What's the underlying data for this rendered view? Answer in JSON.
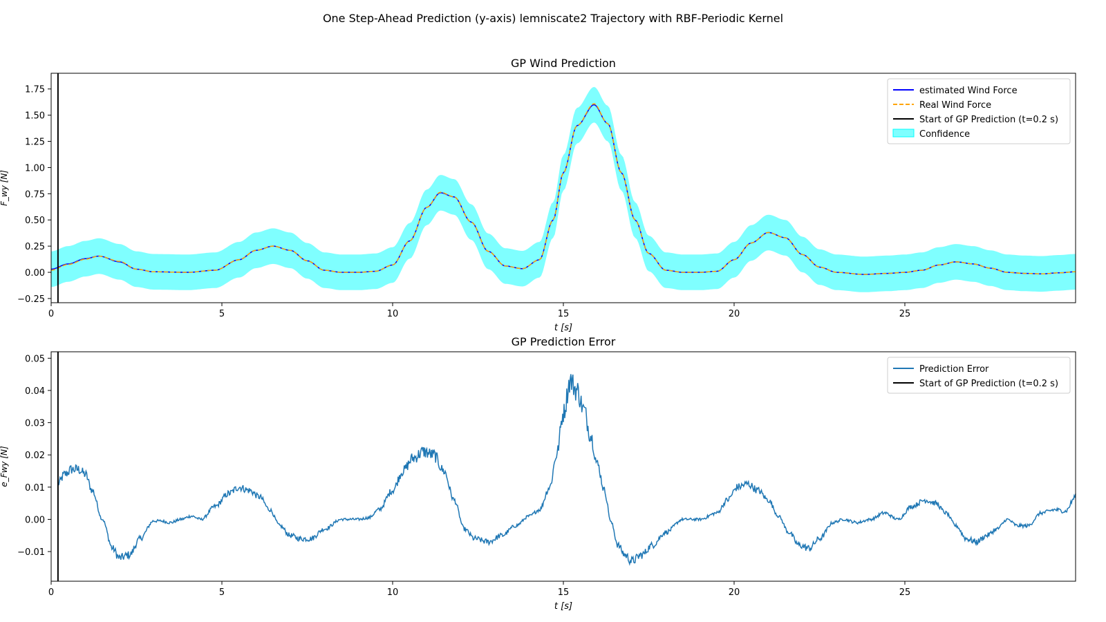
{
  "figure": {
    "suptitle": "One Step-Ahead Prediction (y-axis) lemniscate2 Trajectory with RBF-Periodic Kernel"
  },
  "chart_data": [
    {
      "type": "line",
      "title": "GP Wind Prediction",
      "xlabel": "t [s]",
      "ylabel": "F_wy [N]",
      "xlim": [
        0,
        30
      ],
      "ylim": [
        -0.29,
        1.9
      ],
      "xticks": [
        0,
        5,
        10,
        15,
        20,
        25
      ],
      "yticks": [
        -0.25,
        0.0,
        0.25,
        0.5,
        0.75,
        1.0,
        1.25,
        1.5,
        1.75
      ],
      "ytick_labels": [
        "−0.25",
        "0.00",
        "0.25",
        "0.50",
        "0.75",
        "1.00",
        "1.25",
        "1.50",
        "1.75"
      ],
      "grid": false,
      "legend_position": "top-right",
      "start_line_x": 0.2,
      "legend": [
        {
          "label": "estimated Wind Force",
          "color": "#0000ff",
          "style": "solid"
        },
        {
          "label": "Real Wind Force",
          "color": "#ffa500",
          "style": "dashed"
        },
        {
          "label": "Start of GP Prediction (t=0.2 s)",
          "color": "#000000",
          "style": "solid"
        },
        {
          "label": "Confidence",
          "color": "#00ffff",
          "style": "patch"
        }
      ],
      "confidence_halfwidth": 0.17,
      "series": [
        {
          "name": "estimated Wind Force",
          "color": "#0000ff",
          "x": [
            0,
            0.5,
            1.0,
            1.4,
            2.0,
            2.5,
            3.0,
            4.0,
            4.8,
            5.5,
            6.0,
            6.5,
            7.0,
            7.5,
            8.0,
            8.5,
            9.0,
            9.5,
            10.0,
            10.5,
            11.0,
            11.4,
            11.8,
            12.3,
            12.8,
            13.3,
            13.8,
            14.3,
            14.7,
            15.0,
            15.4,
            15.9,
            16.3,
            16.7,
            17.1,
            17.5,
            18.0,
            18.5,
            19.0,
            19.5,
            20.0,
            20.5,
            21.0,
            21.5,
            22.0,
            22.5,
            23.0,
            23.8,
            24.5,
            25.0,
            25.5,
            26.0,
            26.5,
            27.0,
            27.5,
            28.0,
            28.5,
            29.0,
            29.5,
            30.0
          ],
          "values": [
            0.03,
            0.08,
            0.13,
            0.155,
            0.1,
            0.03,
            0.005,
            0.0,
            0.02,
            0.12,
            0.21,
            0.25,
            0.21,
            0.11,
            0.02,
            0.0,
            0.0,
            0.01,
            0.07,
            0.3,
            0.62,
            0.76,
            0.72,
            0.48,
            0.2,
            0.06,
            0.035,
            0.12,
            0.5,
            0.95,
            1.4,
            1.6,
            1.42,
            0.95,
            0.5,
            0.18,
            0.02,
            0.0,
            0.0,
            0.01,
            0.12,
            0.28,
            0.38,
            0.33,
            0.17,
            0.05,
            0.0,
            -0.02,
            -0.01,
            0.0,
            0.02,
            0.07,
            0.1,
            0.08,
            0.04,
            0.0,
            -0.01,
            -0.015,
            -0.005,
            0.005
          ]
        },
        {
          "name": "Real Wind Force",
          "color": "#ffa500",
          "x": [
            0,
            0.5,
            1.0,
            1.4,
            2.0,
            2.5,
            3.0,
            4.0,
            4.8,
            5.5,
            6.0,
            6.5,
            7.0,
            7.5,
            8.0,
            8.5,
            9.0,
            9.5,
            10.0,
            10.5,
            11.0,
            11.4,
            11.8,
            12.3,
            12.8,
            13.3,
            13.8,
            14.3,
            14.7,
            15.0,
            15.4,
            15.9,
            16.3,
            16.7,
            17.1,
            17.5,
            18.0,
            18.5,
            19.0,
            19.5,
            20.0,
            20.5,
            21.0,
            21.5,
            22.0,
            22.5,
            23.0,
            23.8,
            24.5,
            25.0,
            25.5,
            26.0,
            26.5,
            27.0,
            27.5,
            28.0,
            28.5,
            29.0,
            29.5,
            30.0
          ],
          "values": [
            0.02,
            0.075,
            0.125,
            0.155,
            0.105,
            0.03,
            0.005,
            0.0,
            0.02,
            0.12,
            0.21,
            0.25,
            0.21,
            0.11,
            0.02,
            0.0,
            0.0,
            0.01,
            0.07,
            0.3,
            0.62,
            0.765,
            0.72,
            0.48,
            0.2,
            0.06,
            0.035,
            0.12,
            0.5,
            0.95,
            1.4,
            1.61,
            1.42,
            0.95,
            0.5,
            0.18,
            0.02,
            0.0,
            0.0,
            0.01,
            0.12,
            0.28,
            0.38,
            0.33,
            0.17,
            0.05,
            0.0,
            -0.02,
            -0.01,
            0.0,
            0.02,
            0.07,
            0.1,
            0.08,
            0.04,
            0.0,
            -0.01,
            -0.015,
            -0.005,
            0.005
          ]
        }
      ]
    },
    {
      "type": "line",
      "title": "GP Prediction Error",
      "xlabel": "t [s]",
      "ylabel": "e_Fwy [N]",
      "xlim": [
        0,
        30
      ],
      "ylim": [
        -0.0192,
        0.052
      ],
      "xticks": [
        0,
        5,
        10,
        15,
        20,
        25
      ],
      "yticks": [
        -0.01,
        0.0,
        0.01,
        0.02,
        0.03,
        0.04,
        0.05
      ],
      "ytick_labels": [
        "−0.01",
        "0.00",
        "0.01",
        "0.02",
        "0.03",
        "0.04",
        "0.05"
      ],
      "grid": false,
      "legend_position": "top-right",
      "start_line_x": 0.2,
      "legend": [
        {
          "label": "Prediction Error",
          "color": "#1f77b4",
          "style": "solid"
        },
        {
          "label": "Start of GP Prediction (t=0.2 s)",
          "color": "#000000",
          "style": "solid"
        }
      ],
      "series": [
        {
          "name": "Prediction Error",
          "color": "#1f77b4",
          "x": [
            0.2,
            0.4,
            0.6,
            0.8,
            1.0,
            1.2,
            1.5,
            1.8,
            2.0,
            2.3,
            2.6,
            3.0,
            3.2,
            3.5,
            3.8,
            4.1,
            4.4,
            4.8,
            5.2,
            5.5,
            5.8,
            6.1,
            6.4,
            6.7,
            7.0,
            7.3,
            7.6,
            8.0,
            8.5,
            9.0,
            9.3,
            9.6,
            10.0,
            10.3,
            10.6,
            10.9,
            11.2,
            11.5,
            11.8,
            12.1,
            12.4,
            12.8,
            13.2,
            13.6,
            14.0,
            14.3,
            14.6,
            14.8,
            15.0,
            15.2,
            15.4,
            15.6,
            15.8,
            16.0,
            16.2,
            16.4,
            16.6,
            16.8,
            17.0,
            17.3,
            17.6,
            18.0,
            18.5,
            19.0,
            19.5,
            19.8,
            20.1,
            20.4,
            20.7,
            21.0,
            21.3,
            21.6,
            21.9,
            22.2,
            22.5,
            22.9,
            23.2,
            23.6,
            24.0,
            24.4,
            24.8,
            25.2,
            25.6,
            25.9,
            26.2,
            26.5,
            26.8,
            27.1,
            27.4,
            27.7,
            28.0,
            28.3,
            28.6,
            29.0,
            29.4,
            29.7,
            30.0
          ],
          "values": [
            0.011,
            0.014,
            0.0155,
            0.0155,
            0.014,
            0.009,
            0.0,
            -0.009,
            -0.012,
            -0.011,
            -0.006,
            -0.0005,
            -0.0005,
            -0.001,
            0.0,
            0.001,
            0.0,
            0.004,
            0.008,
            0.01,
            0.009,
            0.007,
            0.003,
            -0.002,
            -0.005,
            -0.006,
            -0.006,
            -0.003,
            0.0,
            0.0,
            0.0005,
            0.003,
            0.009,
            0.015,
            0.019,
            0.021,
            0.02,
            0.015,
            0.006,
            -0.003,
            -0.006,
            -0.007,
            -0.005,
            -0.002,
            0.001,
            0.003,
            0.01,
            0.02,
            0.033,
            0.043,
            0.04,
            0.034,
            0.026,
            0.017,
            0.009,
            -0.001,
            -0.008,
            -0.011,
            -0.013,
            -0.011,
            -0.008,
            -0.004,
            0.0,
            0.0,
            0.002,
            0.006,
            0.01,
            0.011,
            0.009,
            0.006,
            0.001,
            -0.004,
            -0.008,
            -0.009,
            -0.006,
            -0.001,
            0.0,
            -0.001,
            0.0,
            0.002,
            0.0,
            0.004,
            0.006,
            0.005,
            0.002,
            -0.002,
            -0.006,
            -0.007,
            -0.005,
            -0.003,
            0.0,
            -0.002,
            -0.002,
            0.002,
            0.003,
            0.0025,
            0.007
          ]
        }
      ]
    }
  ]
}
